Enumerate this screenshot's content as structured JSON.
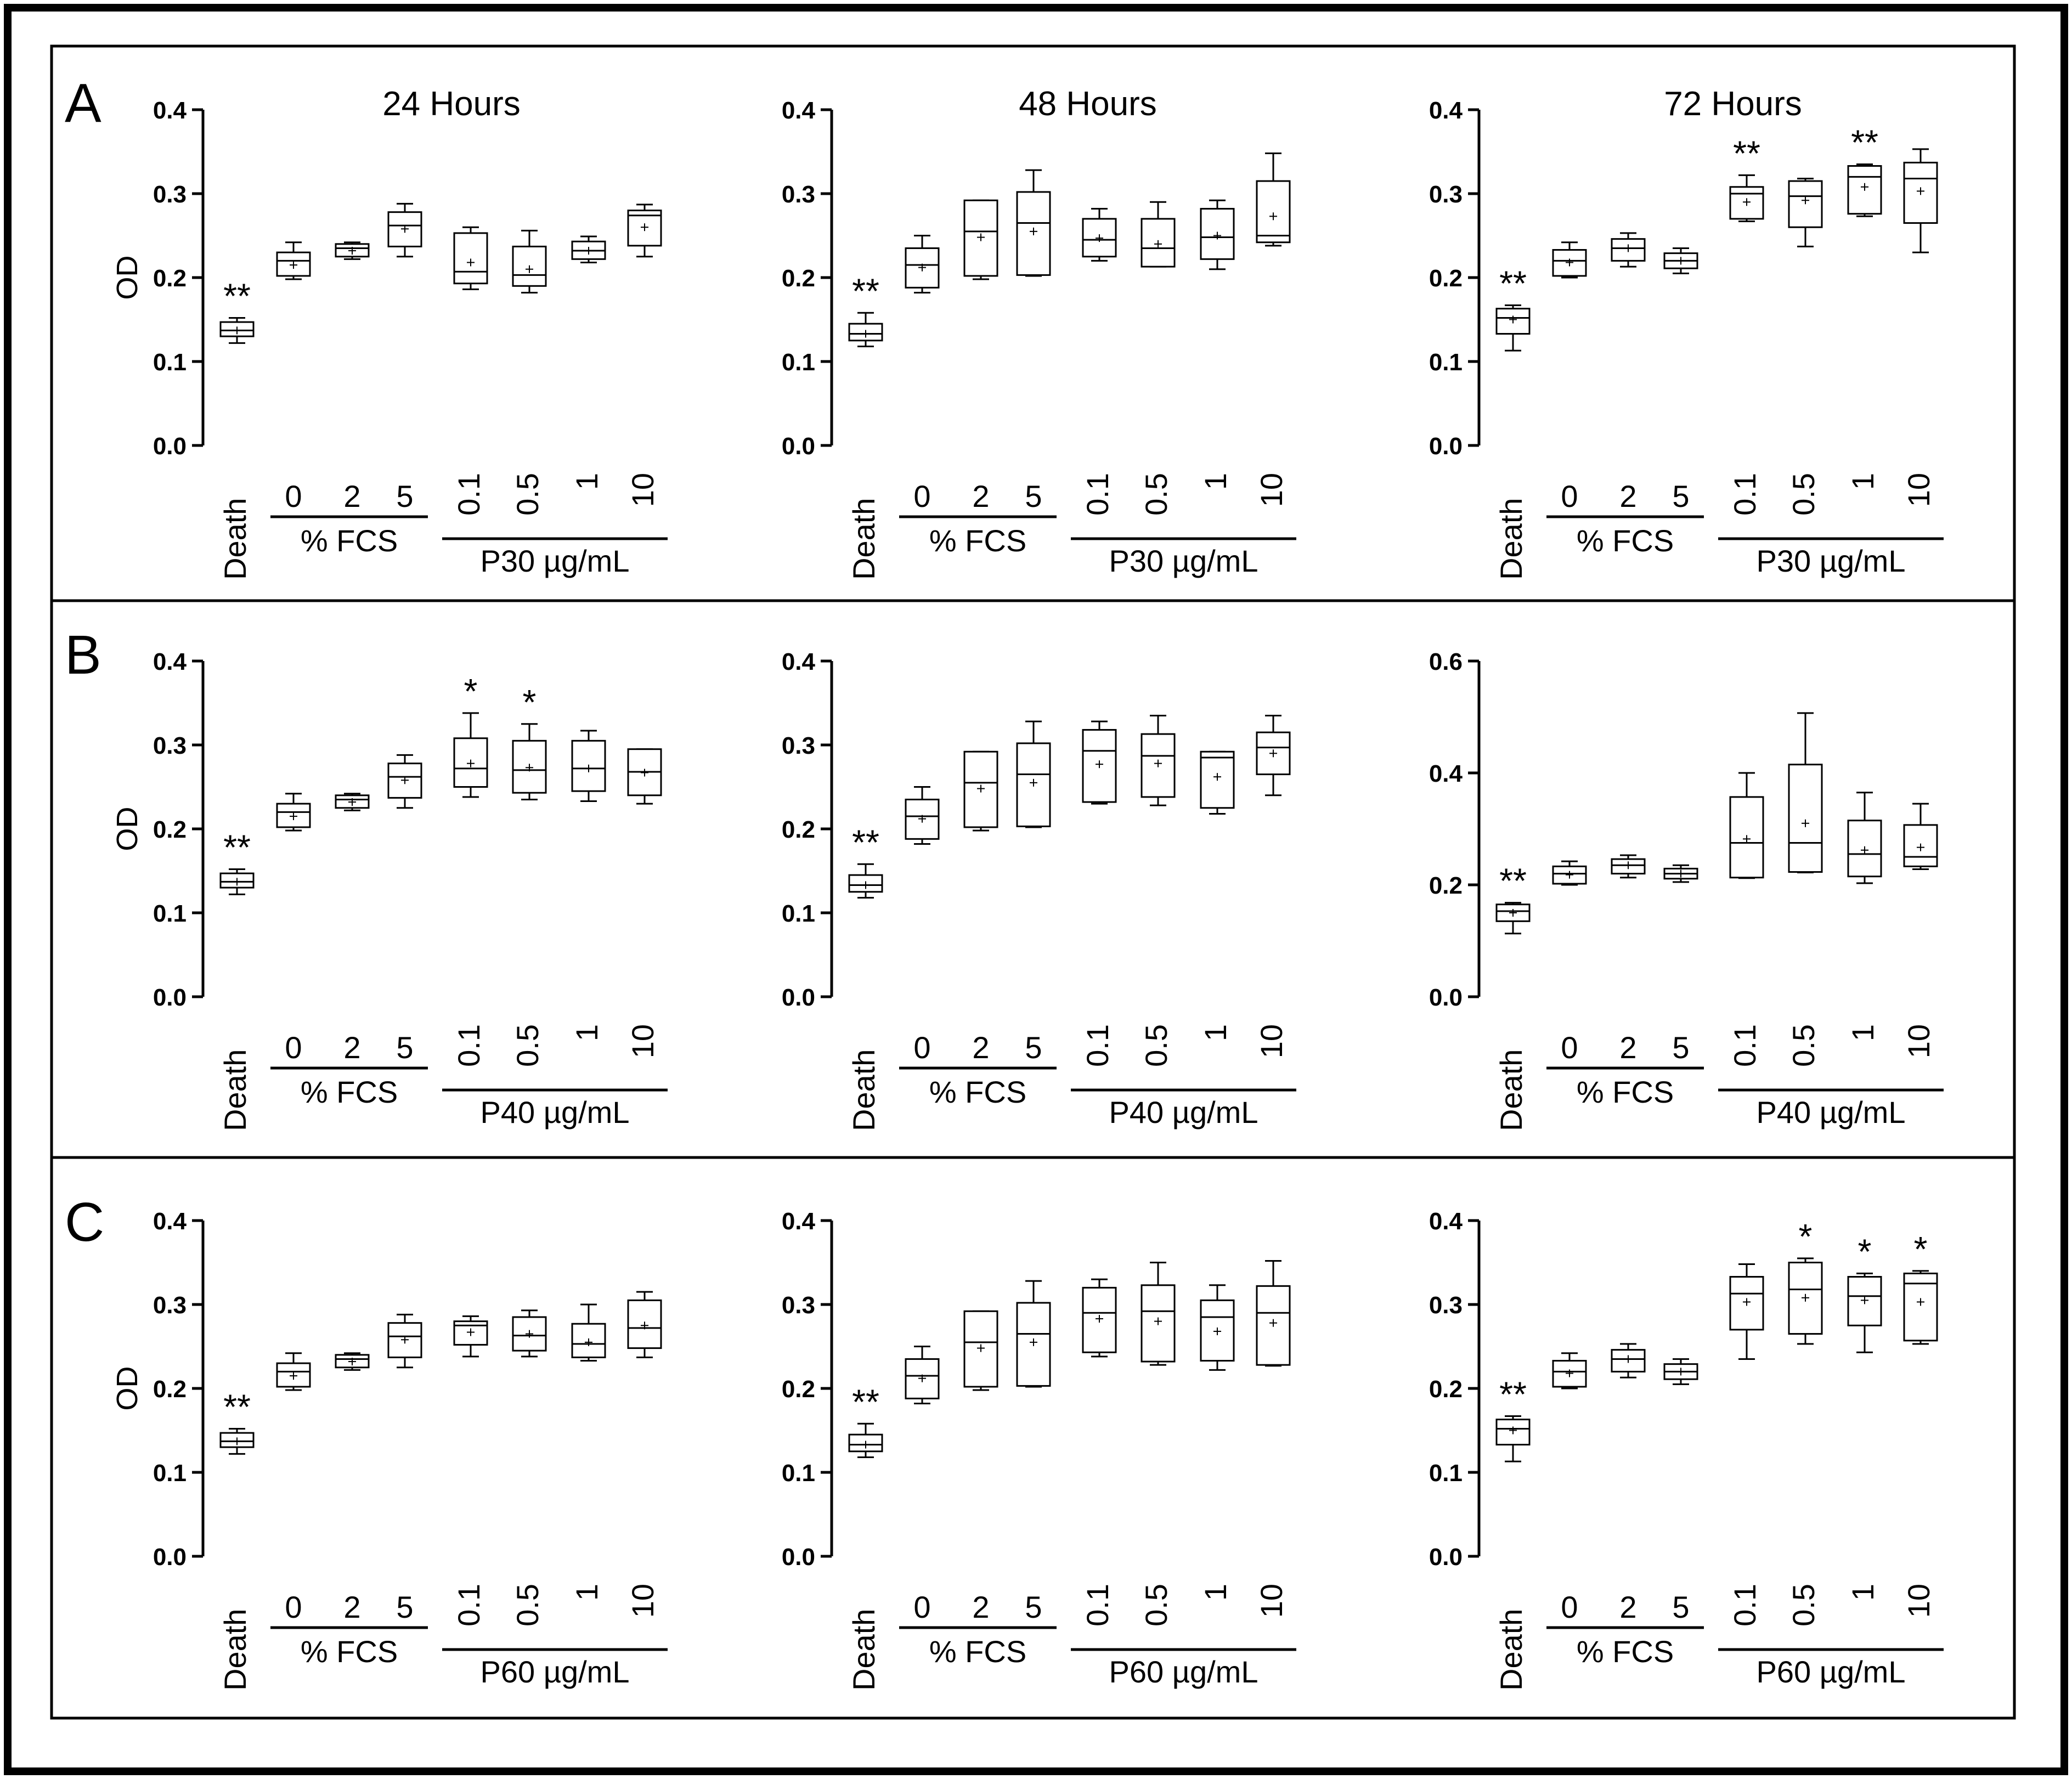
{
  "figure": {
    "colors": {
      "ink": "#000000",
      "background": "#ffffff"
    },
    "y_axis_label": "OD",
    "x_first_label": "Death",
    "fcs_group_label": "% FCS",
    "fcs_levels": [
      "0",
      "2",
      "5"
    ],
    "peptide_levels": [
      "0.1",
      "0.5",
      "1",
      "10"
    ],
    "panels": [
      {
        "letter": "A",
        "peptide_label": "P30 µg/mL"
      },
      {
        "letter": "B",
        "peptide_label": "P40 µg/mL"
      },
      {
        "letter": "C",
        "peptide_label": "P60 µg/mL"
      }
    ],
    "timepoints": [
      "24 Hours",
      "48 Hours",
      "72 Hours"
    ]
  },
  "chart_data": [
    {
      "type": "box",
      "panel": "A",
      "title": "24 Hours",
      "ylabel": "OD",
      "ylim": [
        0,
        0.4
      ],
      "yticks": [
        "0.0",
        "0.1",
        "0.2",
        "0.3",
        "0.4"
      ],
      "categories": [
        "Death",
        "0",
        "2",
        "5",
        "0.1",
        "0.5",
        "1",
        "10"
      ],
      "group_labels": [
        "% FCS",
        "P30 µg/mL"
      ],
      "boxes": [
        {
          "min": 0.122,
          "q1": 0.13,
          "median": 0.137,
          "q3": 0.147,
          "max": 0.152,
          "mean": 0.137,
          "sig": "**"
        },
        {
          "min": 0.198,
          "q1": 0.202,
          "median": 0.22,
          "q3": 0.23,
          "max": 0.242,
          "mean": 0.215,
          "sig": ""
        },
        {
          "min": 0.222,
          "q1": 0.225,
          "median": 0.235,
          "q3": 0.24,
          "max": 0.242,
          "mean": 0.232,
          "sig": ""
        },
        {
          "min": 0.225,
          "q1": 0.237,
          "median": 0.262,
          "q3": 0.278,
          "max": 0.288,
          "mean": 0.258,
          "sig": ""
        },
        {
          "min": 0.186,
          "q1": 0.193,
          "median": 0.207,
          "q3": 0.253,
          "max": 0.26,
          "mean": 0.218,
          "sig": ""
        },
        {
          "min": 0.182,
          "q1": 0.19,
          "median": 0.203,
          "q3": 0.237,
          "max": 0.256,
          "mean": 0.21,
          "sig": ""
        },
        {
          "min": 0.218,
          "q1": 0.222,
          "median": 0.232,
          "q3": 0.243,
          "max": 0.249,
          "mean": 0.232,
          "sig": ""
        },
        {
          "min": 0.225,
          "q1": 0.238,
          "median": 0.274,
          "q3": 0.28,
          "max": 0.287,
          "mean": 0.26,
          "sig": ""
        }
      ]
    },
    {
      "type": "box",
      "panel": "A",
      "title": "48 Hours",
      "ylabel": "",
      "ylim": [
        0,
        0.4
      ],
      "yticks": [
        "0.0",
        "0.1",
        "0.2",
        "0.3",
        "0.4"
      ],
      "categories": [
        "Death",
        "0",
        "2",
        "5",
        "0.1",
        "0.5",
        "1",
        "10"
      ],
      "group_labels": [
        "% FCS",
        "P30 µg/mL"
      ],
      "boxes": [
        {
          "min": 0.118,
          "q1": 0.125,
          "median": 0.133,
          "q3": 0.145,
          "max": 0.158,
          "mean": 0.133,
          "sig": "**"
        },
        {
          "min": 0.182,
          "q1": 0.188,
          "median": 0.215,
          "q3": 0.235,
          "max": 0.25,
          "mean": 0.212,
          "sig": ""
        },
        {
          "min": 0.198,
          "q1": 0.202,
          "median": 0.255,
          "q3": 0.292,
          "max": 0.292,
          "mean": 0.248,
          "sig": ""
        },
        {
          "min": 0.202,
          "q1": 0.203,
          "median": 0.265,
          "q3": 0.302,
          "max": 0.328,
          "mean": 0.255,
          "sig": ""
        },
        {
          "min": 0.22,
          "q1": 0.225,
          "median": 0.245,
          "q3": 0.27,
          "max": 0.282,
          "mean": 0.247,
          "sig": ""
        },
        {
          "min": 0.213,
          "q1": 0.213,
          "median": 0.235,
          "q3": 0.27,
          "max": 0.29,
          "mean": 0.24,
          "sig": ""
        },
        {
          "min": 0.21,
          "q1": 0.222,
          "median": 0.248,
          "q3": 0.282,
          "max": 0.292,
          "mean": 0.25,
          "sig": ""
        },
        {
          "min": 0.238,
          "q1": 0.242,
          "median": 0.25,
          "q3": 0.315,
          "max": 0.348,
          "mean": 0.273,
          "sig": ""
        }
      ]
    },
    {
      "type": "box",
      "panel": "A",
      "title": "72 Hours",
      "ylabel": "",
      "ylim": [
        0,
        0.4
      ],
      "yticks": [
        "0.0",
        "0.1",
        "0.2",
        "0.3",
        "0.4"
      ],
      "categories": [
        "Death",
        "0",
        "2",
        "5",
        "0.1",
        "0.5",
        "1",
        "10"
      ],
      "group_labels": [
        "% FCS",
        "P30 µg/mL"
      ],
      "boxes": [
        {
          "min": 0.113,
          "q1": 0.133,
          "median": 0.152,
          "q3": 0.163,
          "max": 0.167,
          "mean": 0.15,
          "sig": "**"
        },
        {
          "min": 0.2,
          "q1": 0.202,
          "median": 0.22,
          "q3": 0.233,
          "max": 0.242,
          "mean": 0.218,
          "sig": ""
        },
        {
          "min": 0.213,
          "q1": 0.22,
          "median": 0.235,
          "q3": 0.246,
          "max": 0.253,
          "mean": 0.235,
          "sig": ""
        },
        {
          "min": 0.205,
          "q1": 0.211,
          "median": 0.22,
          "q3": 0.229,
          "max": 0.235,
          "mean": 0.22,
          "sig": ""
        },
        {
          "min": 0.267,
          "q1": 0.27,
          "median": 0.3,
          "q3": 0.308,
          "max": 0.322,
          "mean": 0.29,
          "sig": "**"
        },
        {
          "min": 0.237,
          "q1": 0.26,
          "median": 0.297,
          "q3": 0.315,
          "max": 0.318,
          "mean": 0.292,
          "sig": ""
        },
        {
          "min": 0.273,
          "q1": 0.276,
          "median": 0.32,
          "q3": 0.333,
          "max": 0.335,
          "mean": 0.308,
          "sig": "**"
        },
        {
          "min": 0.23,
          "q1": 0.265,
          "median": 0.318,
          "q3": 0.337,
          "max": 0.353,
          "mean": 0.303,
          "sig": ""
        }
      ]
    },
    {
      "type": "box",
      "panel": "B",
      "title": "",
      "ylabel": "OD",
      "ylim": [
        0,
        0.4
      ],
      "yticks": [
        "0.0",
        "0.1",
        "0.2",
        "0.3",
        "0.4"
      ],
      "categories": [
        "Death",
        "0",
        "2",
        "5",
        "0.1",
        "0.5",
        "1",
        "10"
      ],
      "group_labels": [
        "% FCS",
        "P40 µg/mL"
      ],
      "boxes": [
        {
          "min": 0.122,
          "q1": 0.13,
          "median": 0.137,
          "q3": 0.147,
          "max": 0.152,
          "mean": 0.137,
          "sig": "**"
        },
        {
          "min": 0.198,
          "q1": 0.202,
          "median": 0.22,
          "q3": 0.23,
          "max": 0.242,
          "mean": 0.215,
          "sig": ""
        },
        {
          "min": 0.222,
          "q1": 0.225,
          "median": 0.235,
          "q3": 0.24,
          "max": 0.242,
          "mean": 0.232,
          "sig": ""
        },
        {
          "min": 0.225,
          "q1": 0.237,
          "median": 0.262,
          "q3": 0.278,
          "max": 0.288,
          "mean": 0.258,
          "sig": ""
        },
        {
          "min": 0.238,
          "q1": 0.25,
          "median": 0.272,
          "q3": 0.308,
          "max": 0.338,
          "mean": 0.278,
          "sig": "*"
        },
        {
          "min": 0.235,
          "q1": 0.243,
          "median": 0.27,
          "q3": 0.305,
          "max": 0.325,
          "mean": 0.273,
          "sig": "*"
        },
        {
          "min": 0.233,
          "q1": 0.245,
          "median": 0.272,
          "q3": 0.305,
          "max": 0.317,
          "mean": 0.272,
          "sig": ""
        },
        {
          "min": 0.23,
          "q1": 0.24,
          "median": 0.268,
          "q3": 0.295,
          "max": 0.295,
          "mean": 0.267,
          "sig": ""
        }
      ]
    },
    {
      "type": "box",
      "panel": "B",
      "title": "",
      "ylabel": "",
      "ylim": [
        0,
        0.4
      ],
      "yticks": [
        "0.0",
        "0.1",
        "0.2",
        "0.3",
        "0.4"
      ],
      "categories": [
        "Death",
        "0",
        "2",
        "5",
        "0.1",
        "0.5",
        "1",
        "10"
      ],
      "group_labels": [
        "% FCS",
        "P40 µg/mL"
      ],
      "boxes": [
        {
          "min": 0.118,
          "q1": 0.125,
          "median": 0.133,
          "q3": 0.145,
          "max": 0.158,
          "mean": 0.133,
          "sig": "**"
        },
        {
          "min": 0.182,
          "q1": 0.188,
          "median": 0.215,
          "q3": 0.235,
          "max": 0.25,
          "mean": 0.212,
          "sig": ""
        },
        {
          "min": 0.198,
          "q1": 0.202,
          "median": 0.255,
          "q3": 0.292,
          "max": 0.292,
          "mean": 0.248,
          "sig": ""
        },
        {
          "min": 0.202,
          "q1": 0.203,
          "median": 0.265,
          "q3": 0.302,
          "max": 0.328,
          "mean": 0.255,
          "sig": ""
        },
        {
          "min": 0.23,
          "q1": 0.232,
          "median": 0.293,
          "q3": 0.318,
          "max": 0.328,
          "mean": 0.277,
          "sig": ""
        },
        {
          "min": 0.228,
          "q1": 0.238,
          "median": 0.287,
          "q3": 0.313,
          "max": 0.335,
          "mean": 0.278,
          "sig": ""
        },
        {
          "min": 0.218,
          "q1": 0.225,
          "median": 0.285,
          "q3": 0.292,
          "max": 0.292,
          "mean": 0.262,
          "sig": ""
        },
        {
          "min": 0.24,
          "q1": 0.265,
          "median": 0.297,
          "q3": 0.315,
          "max": 0.335,
          "mean": 0.29,
          "sig": ""
        }
      ]
    },
    {
      "type": "box",
      "panel": "B",
      "title": "",
      "ylabel": "",
      "ylim": [
        0,
        0.6
      ],
      "yticks": [
        "0.0",
        "0.2",
        "0.4",
        "0.6"
      ],
      "categories": [
        "Death",
        "0",
        "2",
        "5",
        "0.1",
        "0.5",
        "1",
        "10"
      ],
      "group_labels": [
        "% FCS",
        "P40 µg/mL"
      ],
      "boxes": [
        {
          "min": 0.113,
          "q1": 0.135,
          "median": 0.153,
          "q3": 0.165,
          "max": 0.168,
          "mean": 0.15,
          "sig": "**"
        },
        {
          "min": 0.2,
          "q1": 0.202,
          "median": 0.22,
          "q3": 0.233,
          "max": 0.242,
          "mean": 0.218,
          "sig": ""
        },
        {
          "min": 0.213,
          "q1": 0.22,
          "median": 0.235,
          "q3": 0.246,
          "max": 0.253,
          "mean": 0.235,
          "sig": ""
        },
        {
          "min": 0.205,
          "q1": 0.211,
          "median": 0.22,
          "q3": 0.229,
          "max": 0.235,
          "mean": 0.22,
          "sig": ""
        },
        {
          "min": 0.212,
          "q1": 0.213,
          "median": 0.275,
          "q3": 0.357,
          "max": 0.4,
          "mean": 0.282,
          "sig": ""
        },
        {
          "min": 0.222,
          "q1": 0.223,
          "median": 0.275,
          "q3": 0.415,
          "max": 0.507,
          "mean": 0.31,
          "sig": ""
        },
        {
          "min": 0.203,
          "q1": 0.215,
          "median": 0.255,
          "q3": 0.315,
          "max": 0.365,
          "mean": 0.262,
          "sig": ""
        },
        {
          "min": 0.228,
          "q1": 0.233,
          "median": 0.25,
          "q3": 0.307,
          "max": 0.345,
          "mean": 0.267,
          "sig": ""
        }
      ]
    },
    {
      "type": "box",
      "panel": "C",
      "title": "",
      "ylabel": "OD",
      "ylim": [
        0,
        0.4
      ],
      "yticks": [
        "0.0",
        "0.1",
        "0.2",
        "0.3",
        "0.4"
      ],
      "categories": [
        "Death",
        "0",
        "2",
        "5",
        "0.1",
        "0.5",
        "1",
        "10"
      ],
      "group_labels": [
        "% FCS",
        "P60 µg/mL"
      ],
      "boxes": [
        {
          "min": 0.122,
          "q1": 0.13,
          "median": 0.137,
          "q3": 0.147,
          "max": 0.152,
          "mean": 0.137,
          "sig": "**"
        },
        {
          "min": 0.198,
          "q1": 0.202,
          "median": 0.22,
          "q3": 0.23,
          "max": 0.242,
          "mean": 0.215,
          "sig": ""
        },
        {
          "min": 0.222,
          "q1": 0.225,
          "median": 0.235,
          "q3": 0.24,
          "max": 0.242,
          "mean": 0.232,
          "sig": ""
        },
        {
          "min": 0.225,
          "q1": 0.237,
          "median": 0.262,
          "q3": 0.278,
          "max": 0.288,
          "mean": 0.258,
          "sig": ""
        },
        {
          "min": 0.238,
          "q1": 0.252,
          "median": 0.275,
          "q3": 0.28,
          "max": 0.286,
          "mean": 0.267,
          "sig": ""
        },
        {
          "min": 0.238,
          "q1": 0.245,
          "median": 0.263,
          "q3": 0.285,
          "max": 0.293,
          "mean": 0.265,
          "sig": ""
        },
        {
          "min": 0.233,
          "q1": 0.237,
          "median": 0.253,
          "q3": 0.277,
          "max": 0.3,
          "mean": 0.255,
          "sig": ""
        },
        {
          "min": 0.237,
          "q1": 0.248,
          "median": 0.272,
          "q3": 0.305,
          "max": 0.315,
          "mean": 0.275,
          "sig": ""
        }
      ]
    },
    {
      "type": "box",
      "panel": "C",
      "title": "",
      "ylabel": "",
      "ylim": [
        0,
        0.4
      ],
      "yticks": [
        "0.0",
        "0.1",
        "0.2",
        "0.3",
        "0.4"
      ],
      "categories": [
        "Death",
        "0",
        "2",
        "5",
        "0.1",
        "0.5",
        "1",
        "10"
      ],
      "group_labels": [
        "% FCS",
        "P60 µg/mL"
      ],
      "boxes": [
        {
          "min": 0.118,
          "q1": 0.125,
          "median": 0.133,
          "q3": 0.145,
          "max": 0.158,
          "mean": 0.133,
          "sig": "**"
        },
        {
          "min": 0.182,
          "q1": 0.188,
          "median": 0.215,
          "q3": 0.235,
          "max": 0.25,
          "mean": 0.212,
          "sig": ""
        },
        {
          "min": 0.198,
          "q1": 0.202,
          "median": 0.255,
          "q3": 0.292,
          "max": 0.292,
          "mean": 0.248,
          "sig": ""
        },
        {
          "min": 0.202,
          "q1": 0.203,
          "median": 0.265,
          "q3": 0.302,
          "max": 0.328,
          "mean": 0.255,
          "sig": ""
        },
        {
          "min": 0.238,
          "q1": 0.243,
          "median": 0.29,
          "q3": 0.32,
          "max": 0.33,
          "mean": 0.283,
          "sig": ""
        },
        {
          "min": 0.228,
          "q1": 0.232,
          "median": 0.292,
          "q3": 0.323,
          "max": 0.35,
          "mean": 0.28,
          "sig": ""
        },
        {
          "min": 0.222,
          "q1": 0.233,
          "median": 0.285,
          "q3": 0.305,
          "max": 0.323,
          "mean": 0.268,
          "sig": ""
        },
        {
          "min": 0.227,
          "q1": 0.228,
          "median": 0.29,
          "q3": 0.322,
          "max": 0.352,
          "mean": 0.278,
          "sig": ""
        }
      ]
    },
    {
      "type": "box",
      "panel": "C",
      "title": "",
      "ylabel": "",
      "ylim": [
        0,
        0.4
      ],
      "yticks": [
        "0.0",
        "0.1",
        "0.2",
        "0.3",
        "0.4"
      ],
      "categories": [
        "Death",
        "0",
        "2",
        "5",
        "0.1",
        "0.5",
        "1",
        "10"
      ],
      "group_labels": [
        "% FCS",
        "P60 µg/mL"
      ],
      "boxes": [
        {
          "min": 0.113,
          "q1": 0.133,
          "median": 0.152,
          "q3": 0.163,
          "max": 0.167,
          "mean": 0.15,
          "sig": "**"
        },
        {
          "min": 0.2,
          "q1": 0.202,
          "median": 0.22,
          "q3": 0.233,
          "max": 0.242,
          "mean": 0.218,
          "sig": ""
        },
        {
          "min": 0.213,
          "q1": 0.22,
          "median": 0.235,
          "q3": 0.246,
          "max": 0.253,
          "mean": 0.235,
          "sig": ""
        },
        {
          "min": 0.205,
          "q1": 0.211,
          "median": 0.22,
          "q3": 0.229,
          "max": 0.235,
          "mean": 0.22,
          "sig": ""
        },
        {
          "min": 0.235,
          "q1": 0.27,
          "median": 0.313,
          "q3": 0.333,
          "max": 0.348,
          "mean": 0.303,
          "sig": ""
        },
        {
          "min": 0.253,
          "q1": 0.265,
          "median": 0.318,
          "q3": 0.35,
          "max": 0.355,
          "mean": 0.308,
          "sig": "*"
        },
        {
          "min": 0.243,
          "q1": 0.275,
          "median": 0.31,
          "q3": 0.333,
          "max": 0.337,
          "mean": 0.305,
          "sig": "*"
        },
        {
          "min": 0.253,
          "q1": 0.257,
          "median": 0.325,
          "q3": 0.337,
          "max": 0.34,
          "mean": 0.303,
          "sig": "*"
        }
      ]
    }
  ]
}
